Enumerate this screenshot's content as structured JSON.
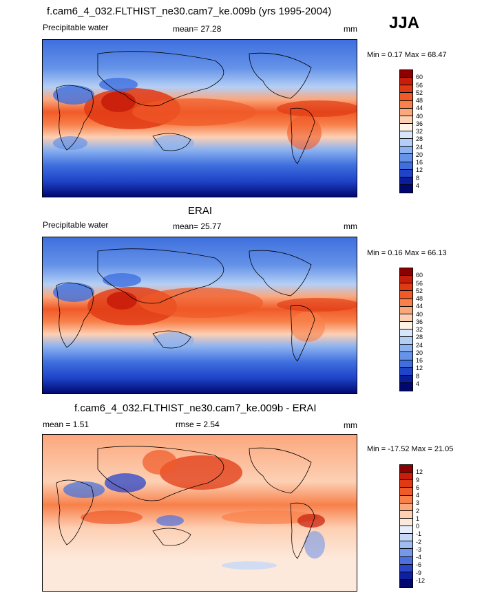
{
  "season": "JJA",
  "panels": [
    {
      "id": "model",
      "title": "f.cam6_4_032.FLTHIST_ne30.cam7_ke.009b (yrs 1995-2004)",
      "left_label": "Precipitable water",
      "mean_text": "mean=  27.28",
      "rmse_text": "",
      "units": "mm",
      "minmax": "Min =   0.17 Max =  68.47",
      "colorbar": {
        "labels": [
          "60",
          "56",
          "52",
          "48",
          "44",
          "40",
          "36",
          "32",
          "28",
          "24",
          "20",
          "16",
          "12",
          "8",
          "4"
        ],
        "colors": [
          "#8b0000",
          "#c81d0a",
          "#e03a14",
          "#f05a28",
          "#f8804a",
          "#fba77c",
          "#fdd0b4",
          "#fff3e6",
          "#d8e6fb",
          "#b4cff6",
          "#8cb2f0",
          "#6593e8",
          "#3f6fde",
          "#1f44c8",
          "#0a1e9c",
          "#000870"
        ]
      }
    },
    {
      "id": "obs",
      "title": "ERAI",
      "left_label": "Precipitable water",
      "mean_text": "mean=  25.77",
      "rmse_text": "",
      "units": "mm",
      "minmax": "Min =   0.16 Max =  66.13",
      "colorbar": {
        "labels": [
          "60",
          "56",
          "52",
          "48",
          "44",
          "40",
          "36",
          "32",
          "28",
          "24",
          "20",
          "16",
          "12",
          "8",
          "4"
        ],
        "colors": [
          "#8b0000",
          "#c81d0a",
          "#e03a14",
          "#f05a28",
          "#f8804a",
          "#fba77c",
          "#fdd0b4",
          "#fff3e6",
          "#d8e6fb",
          "#b4cff6",
          "#8cb2f0",
          "#6593e8",
          "#3f6fde",
          "#1f44c8",
          "#0a1e9c",
          "#000870"
        ]
      }
    },
    {
      "id": "diff",
      "title": "f.cam6_4_032.FLTHIST_ne30.cam7_ke.009b - ERAI",
      "left_label": "",
      "mean_text": "mean =   1.51",
      "rmse_text": "rmse =   2.54",
      "units": "mm",
      "minmax": "Min = -17.52 Max =  21.05",
      "colorbar": {
        "labels": [
          "12",
          "9",
          "6",
          "4",
          "3",
          "2",
          "1",
          "0",
          "-1",
          "-2",
          "-3",
          "-4",
          "-6",
          "-9",
          "-12"
        ],
        "colors": [
          "#8b0000",
          "#c81d0a",
          "#e03a14",
          "#f05a28",
          "#f8804a",
          "#fba77c",
          "#fdd0b4",
          "#fde9dc",
          "#e6eefc",
          "#c6d8f8",
          "#9fbcf2",
          "#7598ea",
          "#4d70de",
          "#2a45c8",
          "#0e1fa0",
          "#000870"
        ]
      }
    }
  ]
}
